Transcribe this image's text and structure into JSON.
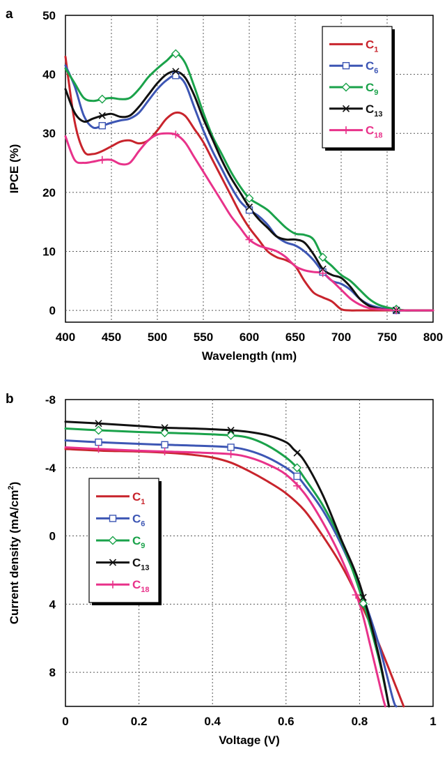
{
  "colors": {
    "C1": "#c8242c",
    "C6": "#3d56b4",
    "C9": "#1aa24a",
    "C13": "#111111",
    "C18": "#e8328a"
  },
  "chart_data": [
    {
      "panel": "a",
      "type": "line",
      "xlabel": "Wavelength (nm)",
      "ylabel": "IPCE (%)",
      "xlim": [
        400,
        800
      ],
      "ylim": [
        -2,
        50
      ],
      "xticks": [
        400,
        450,
        500,
        550,
        600,
        650,
        700,
        750,
        800
      ],
      "yticks": [
        0,
        10,
        20,
        30,
        40,
        50
      ],
      "grid": true,
      "legend": "top-right",
      "series": [
        {
          "name": "C",
          "sub": "1",
          "color": "#c8242c",
          "marker": "none",
          "x": [
            400,
            410,
            420,
            430,
            440,
            450,
            460,
            470,
            480,
            490,
            500,
            510,
            520,
            530,
            540,
            550,
            560,
            570,
            580,
            590,
            600,
            610,
            620,
            630,
            640,
            650,
            660,
            670,
            680,
            690,
            700,
            710,
            720,
            730,
            740,
            750,
            760,
            770,
            780,
            790,
            800
          ],
          "y": [
            43,
            32,
            27,
            26.5,
            27,
            27.8,
            28.6,
            28.8,
            28.3,
            28.8,
            30.5,
            32.5,
            33.5,
            33,
            30.8,
            28.5,
            25.5,
            22.5,
            19.5,
            16.5,
            14,
            12,
            10,
            9,
            8.5,
            7.5,
            5,
            3,
            2.2,
            1.5,
            0.2,
            0,
            0,
            0,
            0,
            0,
            0,
            0,
            0,
            0,
            0
          ],
          "marks": []
        },
        {
          "name": "C",
          "sub": "6",
          "color": "#3d56b4",
          "marker": "square",
          "x": [
            400,
            410,
            420,
            430,
            440,
            450,
            460,
            470,
            480,
            490,
            500,
            510,
            520,
            530,
            540,
            550,
            560,
            570,
            580,
            590,
            600,
            610,
            620,
            630,
            640,
            650,
            660,
            670,
            680,
            690,
            700,
            710,
            720,
            730,
            740,
            750,
            760,
            770,
            780,
            790,
            800
          ],
          "y": [
            41.5,
            38,
            33,
            31,
            31.3,
            31.8,
            32.2,
            32.5,
            33.5,
            35.5,
            37.5,
            39,
            39.8,
            38.5,
            34.5,
            30.5,
            27,
            24,
            21,
            18.5,
            17,
            16,
            14.5,
            12.5,
            11.5,
            11,
            10,
            8.5,
            6.5,
            5,
            4.5,
            3.5,
            2,
            1,
            0.5,
            0.2,
            0,
            0,
            0,
            0,
            0
          ],
          "marks": [
            440,
            520,
            600,
            680,
            760
          ]
        },
        {
          "name": "C",
          "sub": "9",
          "color": "#1aa24a",
          "marker": "diamond",
          "x": [
            400,
            410,
            420,
            430,
            440,
            450,
            460,
            470,
            480,
            490,
            500,
            510,
            520,
            530,
            540,
            550,
            560,
            570,
            580,
            590,
            600,
            610,
            620,
            630,
            640,
            650,
            660,
            670,
            680,
            690,
            700,
            710,
            720,
            730,
            740,
            750,
            760,
            770,
            780,
            790,
            800
          ],
          "y": [
            41,
            38.5,
            36,
            35.5,
            35.8,
            36,
            35.8,
            36,
            37.5,
            39.5,
            41,
            42.3,
            43.5,
            42,
            38,
            33.5,
            29.5,
            26.5,
            23.5,
            21,
            19,
            18,
            17,
            15.5,
            14,
            13,
            12.8,
            12,
            9,
            7.5,
            6,
            5,
            3.5,
            2,
            1,
            0.5,
            0.2,
            0,
            0,
            0,
            0
          ],
          "marks": [
            440,
            520,
            600,
            680,
            760
          ]
        },
        {
          "name": "C",
          "sub": "13",
          "color": "#111111",
          "marker": "cross",
          "x": [
            400,
            410,
            420,
            430,
            440,
            450,
            460,
            470,
            480,
            490,
            500,
            510,
            520,
            530,
            540,
            550,
            560,
            570,
            580,
            590,
            600,
            610,
            620,
            630,
            640,
            650,
            660,
            670,
            680,
            690,
            700,
            710,
            720,
            730,
            740,
            750,
            760,
            770,
            780,
            790,
            800
          ],
          "y": [
            37.5,
            33.5,
            32,
            32.5,
            33,
            33.3,
            32.8,
            33,
            34.5,
            36.5,
            38.5,
            40,
            40.5,
            39.5,
            36.5,
            32.5,
            29,
            25.5,
            22.5,
            20,
            17.5,
            15.5,
            14,
            12.5,
            12,
            12,
            11.5,
            9.5,
            7,
            6,
            5.5,
            4,
            2,
            0.8,
            0.3,
            0.1,
            0,
            0,
            0,
            0,
            0
          ],
          "marks": [
            440,
            520,
            600,
            680,
            760
          ]
        },
        {
          "name": "C",
          "sub": "18",
          "color": "#e8328a",
          "marker": "plus",
          "x": [
            400,
            410,
            420,
            430,
            440,
            450,
            460,
            470,
            480,
            490,
            500,
            510,
            520,
            530,
            540,
            550,
            560,
            570,
            580,
            590,
            600,
            610,
            620,
            630,
            640,
            650,
            660,
            670,
            680,
            690,
            700,
            710,
            720,
            730,
            740,
            750,
            760,
            770,
            780,
            790,
            800
          ],
          "y": [
            29.5,
            25.5,
            25,
            25.2,
            25.5,
            25.5,
            24.8,
            25,
            27,
            28.8,
            29.8,
            30,
            29.8,
            28.5,
            26,
            23.5,
            21,
            18.5,
            16,
            14,
            12,
            11,
            10.5,
            10,
            9,
            7.5,
            6.8,
            6.5,
            6.3,
            5,
            3.5,
            2,
            1,
            0.4,
            0.2,
            0.1,
            0,
            0,
            0,
            0,
            0
          ],
          "marks": [
            440,
            520,
            600,
            680,
            760
          ]
        }
      ]
    },
    {
      "panel": "b",
      "type": "line",
      "xlabel": "Voltage (V)",
      "ylabel": "Current density (mA/cm",
      "ylabel_sup": "2",
      "ylabel_end": ")",
      "xlim": [
        0,
        1
      ],
      "ylim": [
        -8,
        10
      ],
      "y_inverted": true,
      "xticks": [
        0,
        0.2,
        0.4,
        0.6,
        0.8,
        1
      ],
      "xtick_labels": [
        "0",
        "0.2",
        "0.4",
        "0.6",
        "0.8",
        "1"
      ],
      "yticks": [
        -8,
        -4,
        0,
        4,
        8
      ],
      "grid": true,
      "legend": "left",
      "series": [
        {
          "name": "C",
          "sub": "1",
          "color": "#c8242c",
          "marker": "none",
          "x": [
            0,
            0.1,
            0.2,
            0.3,
            0.35,
            0.4,
            0.45,
            0.5,
            0.55,
            0.6,
            0.65,
            0.7,
            0.75,
            0.8,
            0.85,
            0.9,
            0.92
          ],
          "y": [
            -5.1,
            -5.0,
            -4.95,
            -4.85,
            -4.75,
            -4.6,
            -4.3,
            -3.8,
            -3.2,
            -2.5,
            -1.5,
            0,
            1.7,
            3.8,
            6.2,
            8.9,
            10
          ],
          "marks": []
        },
        {
          "name": "C",
          "sub": "6",
          "color": "#3d56b4",
          "marker": "square",
          "x": [
            0,
            0.09,
            0.2,
            0.27,
            0.35,
            0.45,
            0.5,
            0.55,
            0.6,
            0.63,
            0.65,
            0.7,
            0.75,
            0.8,
            0.85,
            0.89,
            0.9
          ],
          "y": [
            -5.6,
            -5.5,
            -5.4,
            -5.35,
            -5.3,
            -5.2,
            -5.0,
            -4.6,
            -4.0,
            -3.5,
            -3.0,
            -1.5,
            0.5,
            3.0,
            6.2,
            9.5,
            10
          ],
          "marks": [
            0.09,
            0.27,
            0.45,
            0.63
          ]
        },
        {
          "name": "C",
          "sub": "9",
          "color": "#1aa24a",
          "marker": "diamond",
          "x": [
            0,
            0.09,
            0.2,
            0.27,
            0.35,
            0.45,
            0.5,
            0.55,
            0.6,
            0.63,
            0.65,
            0.7,
            0.75,
            0.8,
            0.85,
            0.88
          ],
          "y": [
            -6.3,
            -6.2,
            -6.1,
            -6.05,
            -6.0,
            -5.9,
            -5.75,
            -5.3,
            -4.6,
            -4.0,
            -3.4,
            -1.8,
            0.3,
            3.2,
            7.0,
            10
          ],
          "marks": [
            0.09,
            0.27,
            0.45,
            0.63,
            0.81
          ]
        },
        {
          "name": "C",
          "sub": "13",
          "color": "#111111",
          "marker": "cross",
          "x": [
            0,
            0.09,
            0.2,
            0.27,
            0.35,
            0.45,
            0.5,
            0.55,
            0.6,
            0.62,
            0.65,
            0.7,
            0.75,
            0.8,
            0.85,
            0.88
          ],
          "y": [
            -6.7,
            -6.6,
            -6.45,
            -6.35,
            -6.3,
            -6.2,
            -6.1,
            -5.9,
            -5.5,
            -5.1,
            -4.4,
            -2.4,
            0.2,
            2.8,
            6.8,
            10
          ],
          "marks": [
            0.09,
            0.27,
            0.45,
            0.63,
            0.81
          ]
        },
        {
          "name": "C",
          "sub": "18",
          "color": "#e8328a",
          "marker": "plus",
          "x": [
            0,
            0.09,
            0.2,
            0.27,
            0.35,
            0.45,
            0.5,
            0.55,
            0.6,
            0.65,
            0.7,
            0.75,
            0.8,
            0.83,
            0.86,
            0.87
          ],
          "y": [
            -5.2,
            -5.1,
            -5.0,
            -4.95,
            -4.9,
            -4.8,
            -4.6,
            -4.2,
            -3.6,
            -2.5,
            -0.8,
            1.3,
            4.0,
            6.5,
            9.2,
            10
          ],
          "marks": [
            0.09,
            0.27,
            0.45,
            0.63,
            0.79
          ]
        }
      ]
    }
  ]
}
